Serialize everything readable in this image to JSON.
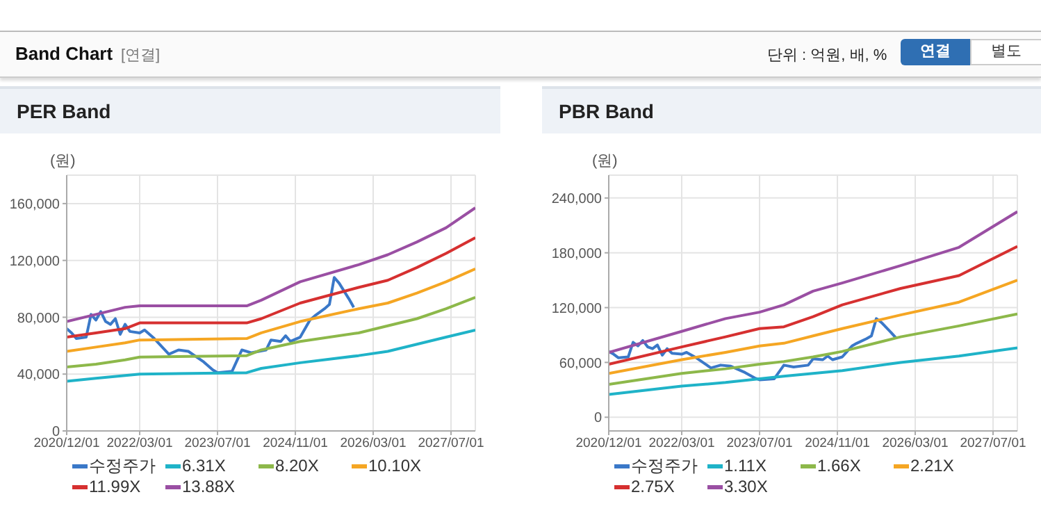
{
  "chart_data": [
    {
      "type": "line",
      "title": "PER Band",
      "ylabel": "(원)",
      "annotations": [
        "Band Chart",
        "[연결]",
        "단위 : 억원, 배, %",
        "연결",
        "별도"
      ],
      "xlim": [
        "2020-12",
        "2027-12"
      ],
      "xticks": [
        {
          "value": "2020-12",
          "label": "2020/12/01"
        },
        {
          "value": "2022-03",
          "label": "2022/03/01"
        },
        {
          "value": "2023-07",
          "label": "2023/07/01"
        },
        {
          "value": "2024-11",
          "label": "2024/11/01"
        },
        {
          "value": "2026-03",
          "label": "2026/03/01"
        },
        {
          "value": "2027-07",
          "label": "2027/07/01"
        }
      ],
      "ylim": [
        0,
        180000
      ],
      "yticks": [
        {
          "value": 0,
          "label": "0"
        },
        {
          "value": 40000,
          "label": "40,000"
        },
        {
          "value": 80000,
          "label": "80,000"
        },
        {
          "value": 120000,
          "label": "120,000"
        },
        {
          "value": 160000,
          "label": "160,000"
        }
      ],
      "grid": true,
      "legend": "bottom",
      "marker": "none",
      "line_style": "solid",
      "series": [
        {
          "name": "수정주가",
          "color": "#3a78c8",
          "x": [
            "2020-12",
            "2021-01",
            "2021-02",
            "2021-04",
            "2021-05",
            "2021-06",
            "2021-07",
            "2021-08",
            "2021-09",
            "2021-10",
            "2021-11",
            "2021-12",
            "2022-01",
            "2022-03",
            "2022-04",
            "2022-06",
            "2022-09",
            "2022-11",
            "2023-01",
            "2023-04",
            "2023-06",
            "2023-07",
            "2023-10",
            "2023-12",
            "2024-02",
            "2024-05",
            "2024-06",
            "2024-08",
            "2024-09",
            "2024-10",
            "2024-12",
            "2025-02",
            "2025-03",
            "2025-05",
            "2025-06",
            "2025-07",
            "2025-08",
            "2025-10",
            "2025-11"
          ],
          "values": [
            72000,
            69000,
            65000,
            66000,
            82000,
            78000,
            84000,
            77000,
            75000,
            79000,
            68000,
            75000,
            70000,
            69000,
            71000,
            65000,
            54000,
            57000,
            56000,
            49000,
            43000,
            41000,
            42000,
            57000,
            55000,
            57000,
            64000,
            63000,
            67000,
            63000,
            66000,
            78000,
            81000,
            86000,
            89000,
            108000,
            104000,
            93000,
            87000
          ]
        },
        {
          "name": "6.31X",
          "color": "#1fb3c8",
          "x": [
            "2020-12",
            "2021-06",
            "2021-12",
            "2022-03",
            "2024-01",
            "2024-04",
            "2024-12",
            "2025-12",
            "2026-06",
            "2026-12",
            "2027-06",
            "2027-12"
          ],
          "values": [
            35000,
            37000,
            39000,
            40000,
            41000,
            44000,
            48000,
            53000,
            56000,
            61000,
            66000,
            71000
          ]
        },
        {
          "name": "8.20X",
          "color": "#8db84a",
          "x": [
            "2020-12",
            "2021-06",
            "2021-12",
            "2022-03",
            "2024-01",
            "2024-04",
            "2024-12",
            "2025-12",
            "2026-06",
            "2026-12",
            "2027-06",
            "2027-12"
          ],
          "values": [
            45000,
            47000,
            50000,
            52000,
            53000,
            57000,
            63000,
            69000,
            74000,
            79000,
            86000,
            94000
          ]
        },
        {
          "name": "10.10X",
          "color": "#f5a623",
          "x": [
            "2020-12",
            "2021-06",
            "2021-12",
            "2022-03",
            "2024-01",
            "2024-04",
            "2024-12",
            "2025-12",
            "2026-06",
            "2026-12",
            "2027-06",
            "2027-12"
          ],
          "values": [
            56000,
            59000,
            62000,
            64000,
            65000,
            69000,
            77000,
            86000,
            90000,
            97000,
            105000,
            114000
          ]
        },
        {
          "name": "11.99X",
          "color": "#d63030",
          "x": [
            "2020-12",
            "2021-06",
            "2021-12",
            "2022-03",
            "2024-01",
            "2024-04",
            "2024-12",
            "2025-12",
            "2026-06",
            "2026-12",
            "2027-06",
            "2027-12"
          ],
          "values": [
            66000,
            69000,
            72000,
            76000,
            76000,
            79000,
            90000,
            101000,
            106000,
            115000,
            125000,
            136000
          ]
        },
        {
          "name": "13.88X",
          "color": "#9a4fa3",
          "x": [
            "2020-12",
            "2021-06",
            "2021-12",
            "2022-03",
            "2024-01",
            "2024-04",
            "2024-12",
            "2025-12",
            "2026-06",
            "2026-12",
            "2027-06",
            "2027-12"
          ],
          "values": [
            77000,
            82000,
            87000,
            88000,
            88000,
            92000,
            105000,
            117000,
            124000,
            133000,
            143000,
            157000
          ]
        }
      ]
    },
    {
      "type": "line",
      "title": "PBR Band",
      "ylabel": "(원)",
      "xlim": [
        "2020-12",
        "2027-12"
      ],
      "xticks": [
        {
          "value": "2020-12",
          "label": "2020/12/01"
        },
        {
          "value": "2022-03",
          "label": "2022/03/01"
        },
        {
          "value": "2023-07",
          "label": "2023/07/01"
        },
        {
          "value": "2024-11",
          "label": "2024/11/01"
        },
        {
          "value": "2026-03",
          "label": "2026/03/01"
        },
        {
          "value": "2027-07",
          "label": "2027/07/01"
        }
      ],
      "ylim": [
        -15000,
        265000
      ],
      "yticks": [
        {
          "value": 0,
          "label": "0"
        },
        {
          "value": 60000,
          "label": "60,000"
        },
        {
          "value": 120000,
          "label": "120,000"
        },
        {
          "value": 180000,
          "label": "180,000"
        },
        {
          "value": 240000,
          "label": "240,000"
        }
      ],
      "grid": true,
      "legend": "bottom",
      "marker": "none",
      "line_style": "solid",
      "series": [
        {
          "name": "수정주가",
          "color": "#3a78c8",
          "x": [
            "2020-12",
            "2021-01",
            "2021-02",
            "2021-04",
            "2021-05",
            "2021-06",
            "2021-07",
            "2021-08",
            "2021-09",
            "2021-10",
            "2021-11",
            "2021-12",
            "2022-01",
            "2022-03",
            "2022-04",
            "2022-06",
            "2022-09",
            "2022-11",
            "2023-01",
            "2023-04",
            "2023-06",
            "2023-07",
            "2023-10",
            "2023-12",
            "2024-02",
            "2024-05",
            "2024-06",
            "2024-08",
            "2024-09",
            "2024-10",
            "2024-12",
            "2025-02",
            "2025-03",
            "2025-05",
            "2025-06",
            "2025-07",
            "2025-08",
            "2025-10",
            "2025-11"
          ],
          "values": [
            72000,
            69000,
            65000,
            66000,
            82000,
            78000,
            84000,
            77000,
            75000,
            79000,
            68000,
            75000,
            70000,
            69000,
            71000,
            65000,
            54000,
            57000,
            56000,
            49000,
            43000,
            41000,
            42000,
            57000,
            55000,
            57000,
            64000,
            63000,
            67000,
            63000,
            66000,
            78000,
            81000,
            86000,
            89000,
            108000,
            104000,
            93000,
            87000
          ]
        },
        {
          "name": "1.11X",
          "color": "#1fb3c8",
          "x": [
            "2020-12",
            "2022-03",
            "2022-12",
            "2023-07",
            "2023-12",
            "2024-06",
            "2024-12",
            "2025-12",
            "2026-12",
            "2027-12"
          ],
          "values": [
            25000,
            34000,
            38000,
            42000,
            45000,
            48000,
            51000,
            60000,
            67000,
            76000
          ]
        },
        {
          "name": "1.66X",
          "color": "#8db84a",
          "x": [
            "2020-12",
            "2022-03",
            "2022-12",
            "2023-07",
            "2023-12",
            "2024-06",
            "2024-12",
            "2025-12",
            "2026-12",
            "2027-12"
          ],
          "values": [
            36000,
            48000,
            53000,
            58000,
            61000,
            66000,
            72000,
            88000,
            100000,
            113000
          ]
        },
        {
          "name": "2.21X",
          "color": "#f5a623",
          "x": [
            "2020-12",
            "2022-03",
            "2022-12",
            "2023-07",
            "2023-12",
            "2024-06",
            "2024-12",
            "2025-12",
            "2026-12",
            "2027-12"
          ],
          "values": [
            48000,
            63000,
            71000,
            78000,
            81000,
            89000,
            97000,
            112000,
            126000,
            150000
          ]
        },
        {
          "name": "2.75X",
          "color": "#d63030",
          "x": [
            "2020-12",
            "2022-03",
            "2022-12",
            "2023-07",
            "2023-12",
            "2024-06",
            "2024-12",
            "2025-12",
            "2026-12",
            "2027-12"
          ],
          "values": [
            58000,
            77000,
            88000,
            97000,
            99000,
            110000,
            123000,
            141000,
            155000,
            187000
          ]
        },
        {
          "name": "3.30X",
          "color": "#9a4fa3",
          "x": [
            "2020-12",
            "2022-03",
            "2022-12",
            "2023-07",
            "2023-12",
            "2024-06",
            "2024-12",
            "2025-12",
            "2026-12",
            "2027-12"
          ],
          "values": [
            71000,
            94000,
            108000,
            115000,
            123000,
            138000,
            147000,
            166000,
            186000,
            225000
          ]
        }
      ]
    }
  ]
}
